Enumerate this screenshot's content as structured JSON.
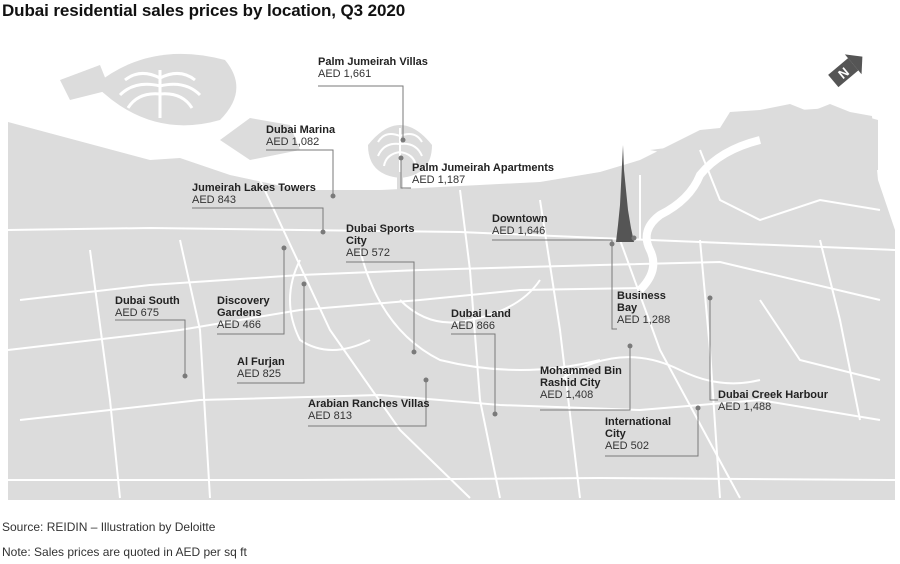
{
  "title": "Dubai residential sales prices by location, Q3 2020",
  "locations": [
    {
      "name": "Palm Jumeirah Villas",
      "price": "AED 1,661"
    },
    {
      "name": "Dubai Marina",
      "price": "AED 1,082"
    },
    {
      "name": "Palm Jumeirah Apartments",
      "price": "AED 1,187"
    },
    {
      "name": "Jumeirah Lakes Towers",
      "price": "AED 843"
    },
    {
      "name": "Dubai Sports City",
      "price": "AED 572"
    },
    {
      "name": "Downtown",
      "price": "AED 1,646"
    },
    {
      "name": "Dubai South",
      "price": "AED 675"
    },
    {
      "name": "Discovery Gardens",
      "price": "AED 466"
    },
    {
      "name": "Business Bay",
      "price": "AED 1,288"
    },
    {
      "name": "Dubai Land",
      "price": "AED 866"
    },
    {
      "name": "Al Furjan",
      "price": "AED 825"
    },
    {
      "name": "Mohammed Bin Rashid City",
      "price": "AED 1,408"
    },
    {
      "name": "Arabian Ranches Villas",
      "price": "AED 813"
    },
    {
      "name": "Dubai Creek Harbour",
      "price": "AED 1,488"
    },
    {
      "name": "International City",
      "price": "AED 502"
    }
  ],
  "compass_icon": "north-arrow-icon",
  "footer": {
    "source": "Source: REIDIN – Illustration by Deloitte",
    "note": "Note: Sales prices are quoted in AED per sq ft"
  },
  "colors": {
    "land": "#dcdcdc",
    "sea": "#ffffff",
    "roads": "#ffffff",
    "leader": "#7a7a7a",
    "tower": "#555555"
  }
}
